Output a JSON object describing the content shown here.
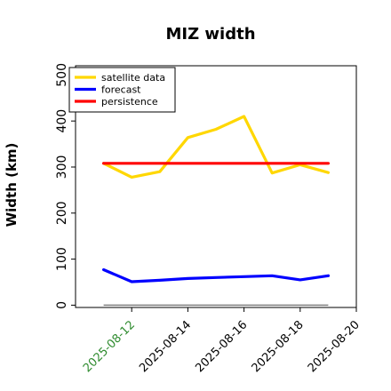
{
  "chart_data": {
    "type": "line",
    "title": "MIZ width",
    "xlabel": "",
    "ylabel": "Width (km)",
    "ylim": [
      -5,
      520
    ],
    "xlim": [
      "2025-08-10",
      "2025-08-20"
    ],
    "yticks": [
      0,
      100,
      200,
      300,
      400,
      500
    ],
    "xticks": [
      {
        "label": "2025-08-12",
        "color": "#2e8b2e"
      },
      {
        "label": "2025-08-14",
        "color": "#000000"
      },
      {
        "label": "2025-08-16",
        "color": "#000000"
      },
      {
        "label": "2025-08-18",
        "color": "#000000"
      },
      {
        "label": "2025-08-20",
        "color": "#000000"
      }
    ],
    "x": [
      "2025-08-11",
      "2025-08-12",
      "2025-08-13",
      "2025-08-14",
      "2025-08-15",
      "2025-08-16",
      "2025-08-17",
      "2025-08-18",
      "2025-08-19"
    ],
    "series": [
      {
        "name": "satellite data",
        "color": "#ffd700",
        "values": [
          308,
          278,
          290,
          364,
          382,
          410,
          287,
          305,
          288
        ]
      },
      {
        "name": "forecast",
        "color": "#0000ff",
        "values": [
          77,
          51,
          54,
          58,
          60,
          62,
          64,
          55,
          64
        ]
      },
      {
        "name": "persistence",
        "color": "#ff0000",
        "values": [
          308,
          308,
          308,
          308,
          308,
          308,
          308,
          308,
          308
        ]
      }
    ],
    "reference_line": {
      "y": 0,
      "x_start": "2025-08-11",
      "x_end": "2025-08-19",
      "color": "#808080"
    },
    "legend_position": "top-left",
    "grid": false
  }
}
